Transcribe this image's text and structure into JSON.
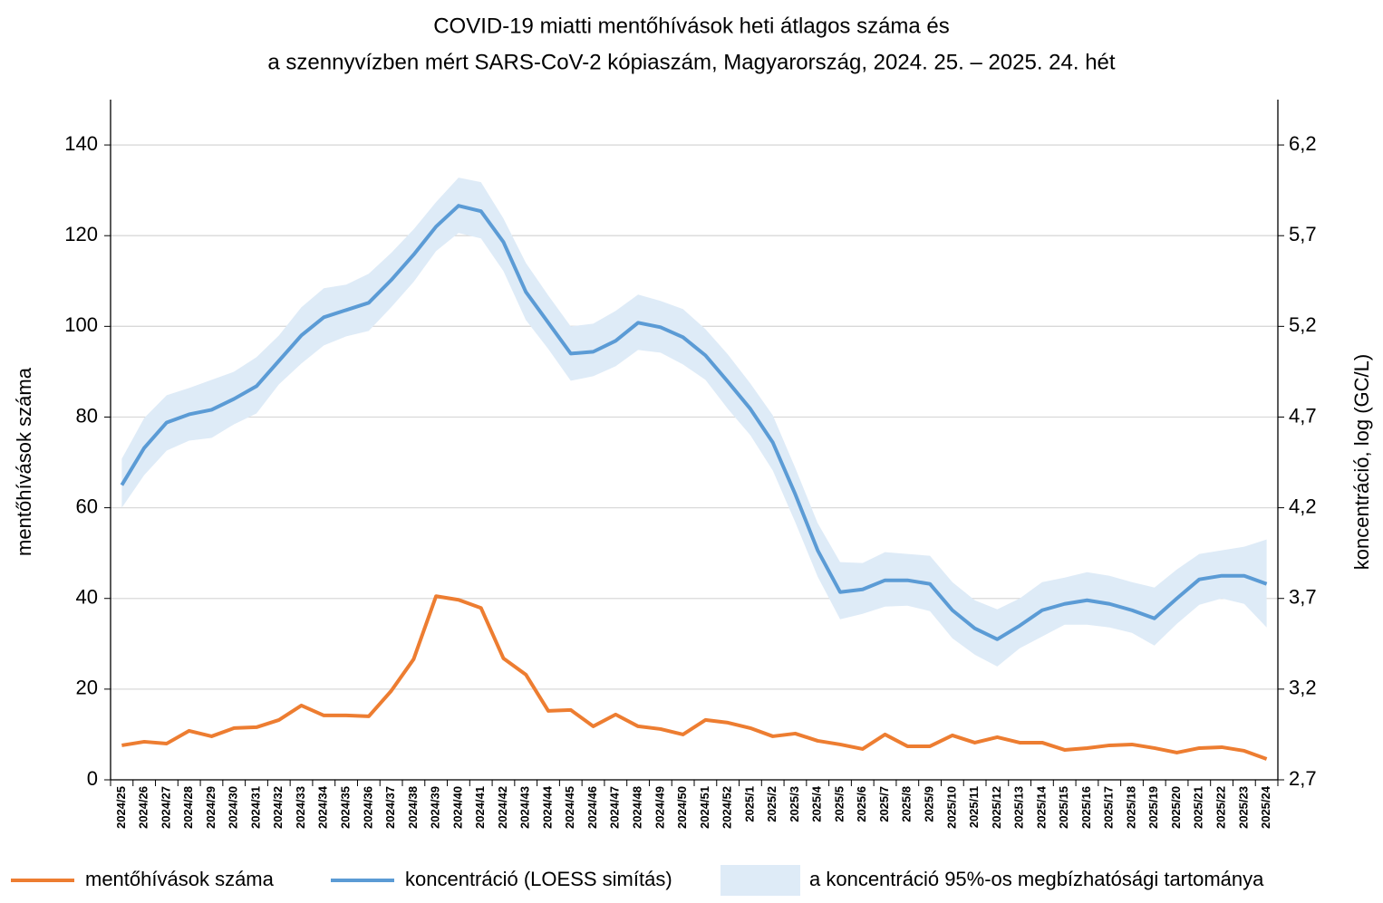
{
  "chart_data": {
    "type": "line",
    "title": [
      "COVID-19 miatti mentőhívások heti átlagos száma és",
      "a szennyvízben mért SARS-CoV-2 kópiaszám, Magyarország, 2024. 25. – 2025. 24. hét"
    ],
    "ylabel": "mentőhívások száma",
    "y2label": "koncentráció, log (GC/L)",
    "categories": [
      "2024/25",
      "2024/26",
      "2024/27",
      "2024/28",
      "2024/29",
      "2024/30",
      "2024/31",
      "2024/32",
      "2024/33",
      "2024/34",
      "2024/35",
      "2024/36",
      "2024/37",
      "2024/38",
      "2024/39",
      "2024/40",
      "2024/41",
      "2024/42",
      "2024/43",
      "2024/44",
      "2024/45",
      "2024/46",
      "2024/47",
      "2024/48",
      "2024/49",
      "2024/50",
      "2024/51",
      "2024/52",
      "2025/1",
      "2025/2",
      "2025/3",
      "2025/4",
      "2025/5",
      "2025/6",
      "2025/7",
      "2025/8",
      "2025/9",
      "2025/10",
      "2025/11",
      "2025/12",
      "2025/13",
      "2025/14",
      "2025/15",
      "2025/16",
      "2025/17",
      "2025/18",
      "2025/19",
      "2025/20",
      "2025/21",
      "2025/22",
      "2025/23",
      "2025/24"
    ],
    "ylim": [
      0,
      150
    ],
    "yticks": [
      0,
      20,
      40,
      60,
      80,
      100,
      120,
      140
    ],
    "y2lim": [
      2.7,
      6.45
    ],
    "y2ticks": [
      {
        "value": 2.7,
        "label": "2,7"
      },
      {
        "value": 3.2,
        "label": "3,2"
      },
      {
        "value": 3.7,
        "label": "3,7"
      },
      {
        "value": 4.2,
        "label": "4,2"
      },
      {
        "value": 4.7,
        "label": "4,7"
      },
      {
        "value": 5.2,
        "label": "5,2"
      },
      {
        "value": 5.7,
        "label": "5,7"
      },
      {
        "value": 6.2,
        "label": "6,2"
      }
    ],
    "grid": true,
    "series": [
      {
        "name": "mentőhívások száma",
        "color": "#ed7d31",
        "values": [
          7.6,
          8.4,
          8.0,
          10.8,
          9.6,
          11.4,
          11.6,
          13.2,
          16.4,
          14.2,
          14.2,
          14.0,
          19.6,
          26.6,
          40.5,
          39.7,
          37.9,
          26.8,
          23.2,
          15.2,
          15.4,
          11.8,
          14.4,
          11.8,
          11.2,
          10.0,
          13.2,
          12.6,
          11.4,
          9.6,
          10.2,
          8.6,
          7.8,
          6.8,
          10.0,
          7.4,
          7.4,
          9.8,
          8.2,
          9.4,
          8.2,
          8.2,
          6.6,
          7.0,
          7.6,
          7.8,
          7.0,
          6.0,
          7.0,
          7.2,
          6.4,
          4.6
        ]
      },
      {
        "name": "koncentráció (LOESS simítás)",
        "color": "#5b9bd5",
        "axis": "y2",
        "values": [
          4.325,
          4.53,
          4.67,
          4.715,
          4.74,
          4.8,
          4.87,
          5.01,
          5.15,
          5.25,
          5.29,
          5.33,
          5.455,
          5.595,
          5.75,
          5.865,
          5.835,
          5.665,
          5.39,
          5.22,
          5.05,
          5.06,
          5.12,
          5.22,
          5.195,
          5.14,
          5.04,
          4.895,
          4.745,
          4.56,
          4.275,
          3.965,
          3.735,
          3.75,
          3.8,
          3.8,
          3.78,
          3.635,
          3.535,
          3.475,
          3.55,
          3.635,
          3.67,
          3.69,
          3.67,
          3.635,
          3.59,
          3.7,
          3.805,
          3.825,
          3.825,
          3.78
        ]
      },
      {
        "name": "a koncentráció 95%-os megbízhatósági tartománya",
        "color": "#deebf7",
        "axis": "y2",
        "type": "band",
        "upper": [
          4.47,
          4.695,
          4.82,
          4.86,
          4.905,
          4.95,
          5.03,
          5.15,
          5.305,
          5.41,
          5.43,
          5.49,
          5.605,
          5.735,
          5.885,
          6.02,
          5.995,
          5.795,
          5.55,
          5.37,
          5.2,
          5.215,
          5.285,
          5.375,
          5.34,
          5.295,
          5.185,
          5.045,
          4.885,
          4.71,
          4.42,
          4.115,
          3.9,
          3.895,
          3.955,
          3.945,
          3.935,
          3.79,
          3.69,
          3.64,
          3.7,
          3.79,
          3.815,
          3.845,
          3.825,
          3.79,
          3.76,
          3.86,
          3.945,
          3.965,
          3.985,
          4.025
        ],
        "lower": [
          4.2,
          4.38,
          4.515,
          4.57,
          4.585,
          4.66,
          4.72,
          4.88,
          4.995,
          5.095,
          5.145,
          5.175,
          5.305,
          5.445,
          5.615,
          5.715,
          5.685,
          5.505,
          5.235,
          5.075,
          4.9,
          4.925,
          4.98,
          5.07,
          5.055,
          4.99,
          4.905,
          4.745,
          4.6,
          4.405,
          4.12,
          3.82,
          3.585,
          3.615,
          3.655,
          3.66,
          3.63,
          3.48,
          3.39,
          3.325,
          3.425,
          3.49,
          3.555,
          3.555,
          3.54,
          3.51,
          3.44,
          3.56,
          3.665,
          3.7,
          3.67,
          3.54
        ]
      }
    ]
  }
}
